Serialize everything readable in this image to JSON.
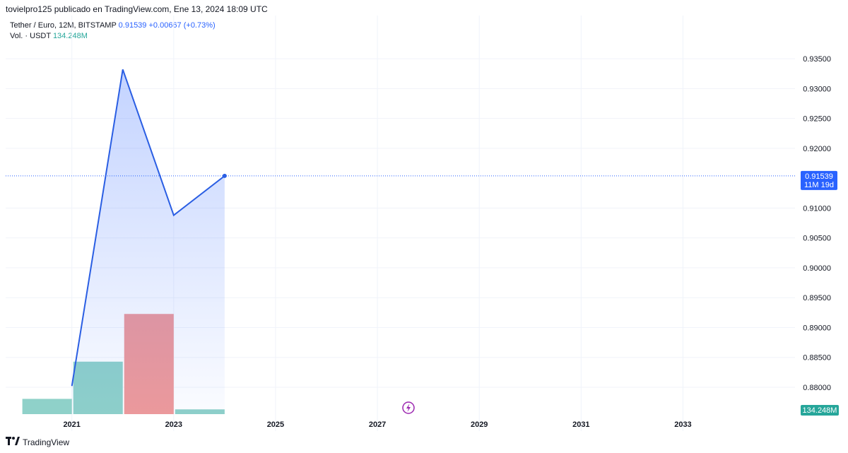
{
  "header": {
    "publisher": "tovielpro125 publicado en TradingView.com, Ene 13, 2024 18:09 UTC"
  },
  "symbol": {
    "name": "Tether / Euro, 12M, BITSTAMP",
    "price": "0.91539",
    "change": "+0.00667 (+0.73%)"
  },
  "volume": {
    "label": "Vol. · USDT",
    "value": "134.248M"
  },
  "price_tag": {
    "price": "0.91539",
    "countdown": "11M 19d"
  },
  "volume_tag": "134.248M",
  "footer": {
    "brand": "TradingView"
  },
  "colors": {
    "line": "#2a5ee3",
    "vol_up": "#8fd1c9",
    "vol_down": "#ef9a9a",
    "tag_blue": "#2962ff",
    "tag_green": "#26a69a"
  },
  "chart_data": {
    "type": "line",
    "y_axis_ticks": [
      "0.93500",
      "0.93000",
      "0.92500",
      "0.92000",
      "0.91000",
      "0.90500",
      "0.90000",
      "0.89500",
      "0.89000",
      "0.88500",
      "0.88000"
    ],
    "x_axis_ticks": [
      "2021",
      "2023",
      "2025",
      "2027",
      "2029",
      "2031",
      "2033"
    ],
    "ylim": [
      0.8755,
      0.9375
    ],
    "xlim": [
      2019.7,
      2035.2
    ],
    "price_series": {
      "x": [
        2021,
        2022,
        2023,
        2024
      ],
      "y": [
        0.8802,
        0.9332,
        0.9088,
        0.91539
      ]
    },
    "volume_series": {
      "x": [
        2020.5,
        2021.5,
        2022.5,
        2023.5
      ],
      "values": [
        16,
        55,
        105,
        5
      ],
      "direction": [
        "up",
        "up",
        "down",
        "up"
      ],
      "max": 200
    },
    "last_price": 0.91539
  }
}
